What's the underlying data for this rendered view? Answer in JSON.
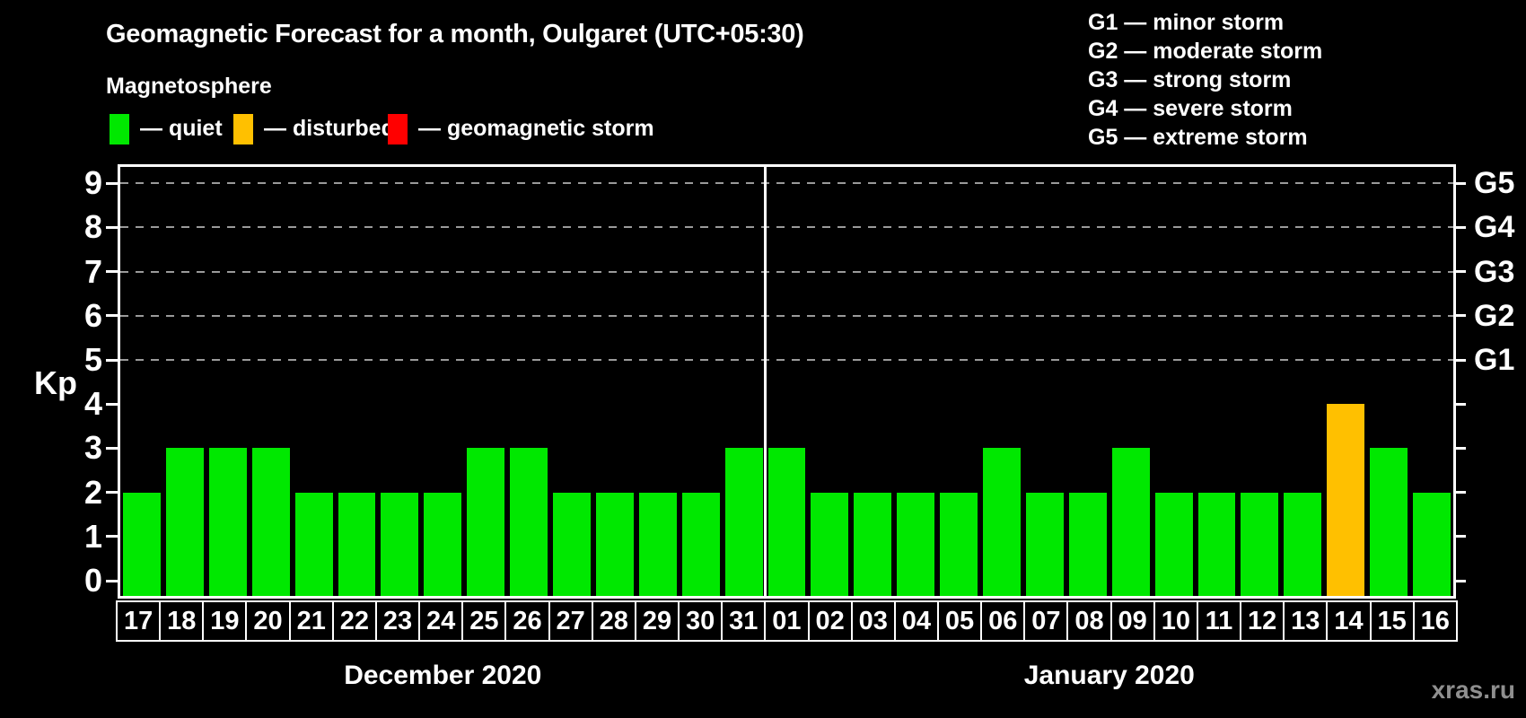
{
  "header": {
    "title": "Geomagnetic Forecast for a month, Oulgaret (UTC+05:30)",
    "subtitle": "Magnetosphere",
    "legend": [
      {
        "name": "quiet",
        "label": "— quiet",
        "color": "#00e800"
      },
      {
        "name": "disturbed",
        "label": "— disturbed",
        "color": "#ffc000"
      },
      {
        "name": "storm",
        "label": "— geomagnetic storm",
        "color": "#ff0000"
      }
    ],
    "g_scale_legend": [
      "G1 — minor storm",
      "G2 — moderate storm",
      "G3 — strong storm",
      "G4 — severe storm",
      "G5 — extreme storm"
    ]
  },
  "chart_data": {
    "type": "bar",
    "ylabel": "Kp",
    "ylim": [
      0,
      9
    ],
    "y_ticks": [
      0,
      1,
      2,
      3,
      4,
      5,
      6,
      7,
      8,
      9
    ],
    "gridlines_at": [
      5,
      6,
      7,
      8,
      9
    ],
    "grid_on": true,
    "right_axis_labels": [
      {
        "kp": 5,
        "label": "G1"
      },
      {
        "kp": 6,
        "label": "G2"
      },
      {
        "kp": 7,
        "label": "G3"
      },
      {
        "kp": 8,
        "label": "G4"
      },
      {
        "kp": 9,
        "label": "G5"
      }
    ],
    "status_colors": {
      "quiet": "#00e800",
      "disturbed": "#ffc000",
      "storm": "#ff0000"
    },
    "days": [
      {
        "day": "17",
        "kp": 2,
        "status": "quiet"
      },
      {
        "day": "18",
        "kp": 3,
        "status": "quiet"
      },
      {
        "day": "19",
        "kp": 3,
        "status": "quiet"
      },
      {
        "day": "20",
        "kp": 3,
        "status": "quiet"
      },
      {
        "day": "21",
        "kp": 2,
        "status": "quiet"
      },
      {
        "day": "22",
        "kp": 2,
        "status": "quiet"
      },
      {
        "day": "23",
        "kp": 2,
        "status": "quiet"
      },
      {
        "day": "24",
        "kp": 2,
        "status": "quiet"
      },
      {
        "day": "25",
        "kp": 3,
        "status": "quiet"
      },
      {
        "day": "26",
        "kp": 3,
        "status": "quiet"
      },
      {
        "day": "27",
        "kp": 2,
        "status": "quiet"
      },
      {
        "day": "28",
        "kp": 2,
        "status": "quiet"
      },
      {
        "day": "29",
        "kp": 2,
        "status": "quiet"
      },
      {
        "day": "30",
        "kp": 2,
        "status": "quiet"
      },
      {
        "day": "31",
        "kp": 3,
        "status": "quiet"
      },
      {
        "day": "01",
        "kp": 3,
        "status": "quiet"
      },
      {
        "day": "02",
        "kp": 2,
        "status": "quiet"
      },
      {
        "day": "03",
        "kp": 2,
        "status": "quiet"
      },
      {
        "day": "04",
        "kp": 2,
        "status": "quiet"
      },
      {
        "day": "05",
        "kp": 2,
        "status": "quiet"
      },
      {
        "day": "06",
        "kp": 3,
        "status": "quiet"
      },
      {
        "day": "07",
        "kp": 2,
        "status": "quiet"
      },
      {
        "day": "08",
        "kp": 2,
        "status": "quiet"
      },
      {
        "day": "09",
        "kp": 3,
        "status": "quiet"
      },
      {
        "day": "10",
        "kp": 2,
        "status": "quiet"
      },
      {
        "day": "11",
        "kp": 2,
        "status": "quiet"
      },
      {
        "day": "12",
        "kp": 2,
        "status": "quiet"
      },
      {
        "day": "13",
        "kp": 2,
        "status": "quiet"
      },
      {
        "day": "14",
        "kp": 4,
        "status": "disturbed"
      },
      {
        "day": "15",
        "kp": 3,
        "status": "quiet"
      },
      {
        "day": "16",
        "kp": 2,
        "status": "quiet"
      }
    ],
    "months": [
      {
        "label": "December 2020",
        "start": 0,
        "count": 15
      },
      {
        "label": "January 2020",
        "start": 15,
        "count": 16
      }
    ]
  },
  "footer": {
    "watermark": "xras.ru"
  }
}
